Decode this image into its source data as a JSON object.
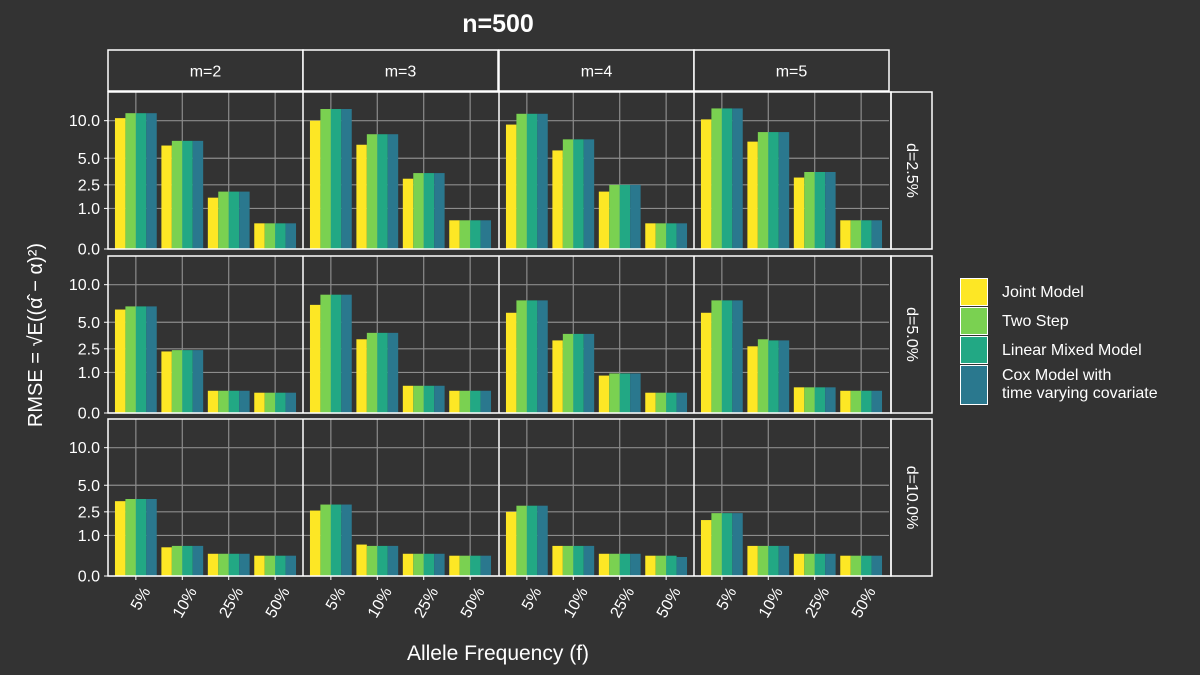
{
  "chart_data": {
    "type": "bar",
    "title": "n=500",
    "xlabel": "Allele Frequency (f)",
    "ylabel": "RMSE = √E((α̂ − α)²)",
    "scale": "sqrt",
    "ylim": [
      0,
      13.3
    ],
    "yticks": [
      0.0,
      1.0,
      2.5,
      5.0,
      10.0
    ],
    "ytick_labels": [
      "0.0",
      "1.0",
      "2.5",
      "5.0",
      "10.0"
    ],
    "grid": true,
    "legend_position": "right",
    "categories": [
      "5%",
      "10%",
      "25%",
      "50%"
    ],
    "col_facets": [
      "m=2",
      "m=3",
      "m=4",
      "m=5"
    ],
    "row_facets": [
      "d=2.5%",
      "d=5.0%",
      "d=10.0%"
    ],
    "series": [
      {
        "name": "Joint Model",
        "color": "#fde725"
      },
      {
        "name": "Two Step",
        "color": "#7ad151"
      },
      {
        "name": "Linear Mixed Model",
        "color": "#22a884"
      },
      {
        "name": "Cox Model with\ntime varying covariate",
        "color": "#2a788e"
      }
    ],
    "panels": [
      {
        "row": "d=2.5%",
        "col": "m=2",
        "values": [
          [
            10.4,
            11.2,
            11.2,
            11.2
          ],
          [
            6.5,
            7.1,
            7.1,
            7.1
          ],
          [
            1.6,
            2.0,
            2.0,
            2.0
          ],
          [
            0.4,
            0.4,
            0.4,
            0.4
          ]
        ]
      },
      {
        "row": "d=2.5%",
        "col": "m=3",
        "values": [
          [
            10.0,
            11.9,
            11.9,
            11.9
          ],
          [
            6.6,
            8.0,
            8.0,
            8.0
          ],
          [
            3.0,
            3.5,
            3.5,
            3.5
          ],
          [
            0.5,
            0.5,
            0.5,
            0.5
          ]
        ]
      },
      {
        "row": "d=2.5%",
        "col": "m=4",
        "values": [
          [
            9.4,
            11.1,
            11.1,
            11.1
          ],
          [
            5.9,
            7.3,
            7.3,
            7.3
          ],
          [
            2.0,
            2.5,
            2.5,
            2.5
          ],
          [
            0.4,
            0.4,
            0.4,
            0.4
          ]
        ]
      },
      {
        "row": "d=2.5%",
        "col": "m=5",
        "values": [
          [
            10.2,
            12.0,
            12.0,
            12.0
          ],
          [
            7.0,
            8.3,
            8.3,
            8.3
          ],
          [
            3.1,
            3.6,
            3.6,
            3.6
          ],
          [
            0.5,
            0.5,
            0.5,
            0.5
          ]
        ]
      },
      {
        "row": "d=5.0%",
        "col": "m=2",
        "values": [
          [
            6.5,
            6.9,
            6.9,
            6.9
          ],
          [
            2.3,
            2.4,
            2.4,
            2.4
          ],
          [
            0.3,
            0.3,
            0.3,
            0.3
          ],
          [
            0.25,
            0.25,
            0.25,
            0.25
          ]
        ]
      },
      {
        "row": "d=5.0%",
        "col": "m=3",
        "values": [
          [
            7.1,
            8.5,
            8.5,
            8.5
          ],
          [
            3.3,
            3.9,
            3.9,
            3.9
          ],
          [
            0.45,
            0.45,
            0.45,
            0.45
          ],
          [
            0.3,
            0.3,
            0.3,
            0.3
          ]
        ]
      },
      {
        "row": "d=5.0%",
        "col": "m=4",
        "values": [
          [
            6.1,
            7.7,
            7.7,
            7.7
          ],
          [
            3.2,
            3.8,
            3.8,
            3.8
          ],
          [
            0.85,
            0.95,
            0.95,
            0.95
          ],
          [
            0.25,
            0.25,
            0.25,
            0.25
          ]
        ]
      },
      {
        "row": "d=5.0%",
        "col": "m=5",
        "values": [
          [
            6.1,
            7.7,
            7.7,
            7.7
          ],
          [
            2.7,
            3.3,
            3.2,
            3.2
          ],
          [
            0.4,
            0.4,
            0.4,
            0.4
          ],
          [
            0.3,
            0.3,
            0.3,
            0.3
          ]
        ]
      },
      {
        "row": "d=10.0%",
        "col": "m=2",
        "values": [
          [
            3.4,
            3.6,
            3.6,
            3.6
          ],
          [
            0.5,
            0.55,
            0.55,
            0.55
          ],
          [
            0.3,
            0.3,
            0.3,
            0.3
          ],
          [
            0.25,
            0.25,
            0.25,
            0.25
          ]
        ]
      },
      {
        "row": "d=10.0%",
        "col": "m=3",
        "values": [
          [
            2.6,
            3.1,
            3.1,
            3.1
          ],
          [
            0.6,
            0.55,
            0.55,
            0.55
          ],
          [
            0.3,
            0.3,
            0.3,
            0.3
          ],
          [
            0.25,
            0.25,
            0.25,
            0.25
          ]
        ]
      },
      {
        "row": "d=10.0%",
        "col": "m=4",
        "values": [
          [
            2.5,
            3.0,
            3.0,
            3.0
          ],
          [
            0.55,
            0.55,
            0.55,
            0.55
          ],
          [
            0.3,
            0.3,
            0.3,
            0.3
          ],
          [
            0.25,
            0.25,
            0.25,
            0.22
          ]
        ]
      },
      {
        "row": "d=10.0%",
        "col": "m=5",
        "values": [
          [
            1.9,
            2.4,
            2.4,
            2.4
          ],
          [
            0.55,
            0.55,
            0.55,
            0.55
          ],
          [
            0.3,
            0.3,
            0.3,
            0.3
          ],
          [
            0.25,
            0.25,
            0.25,
            0.25
          ]
        ]
      }
    ]
  }
}
